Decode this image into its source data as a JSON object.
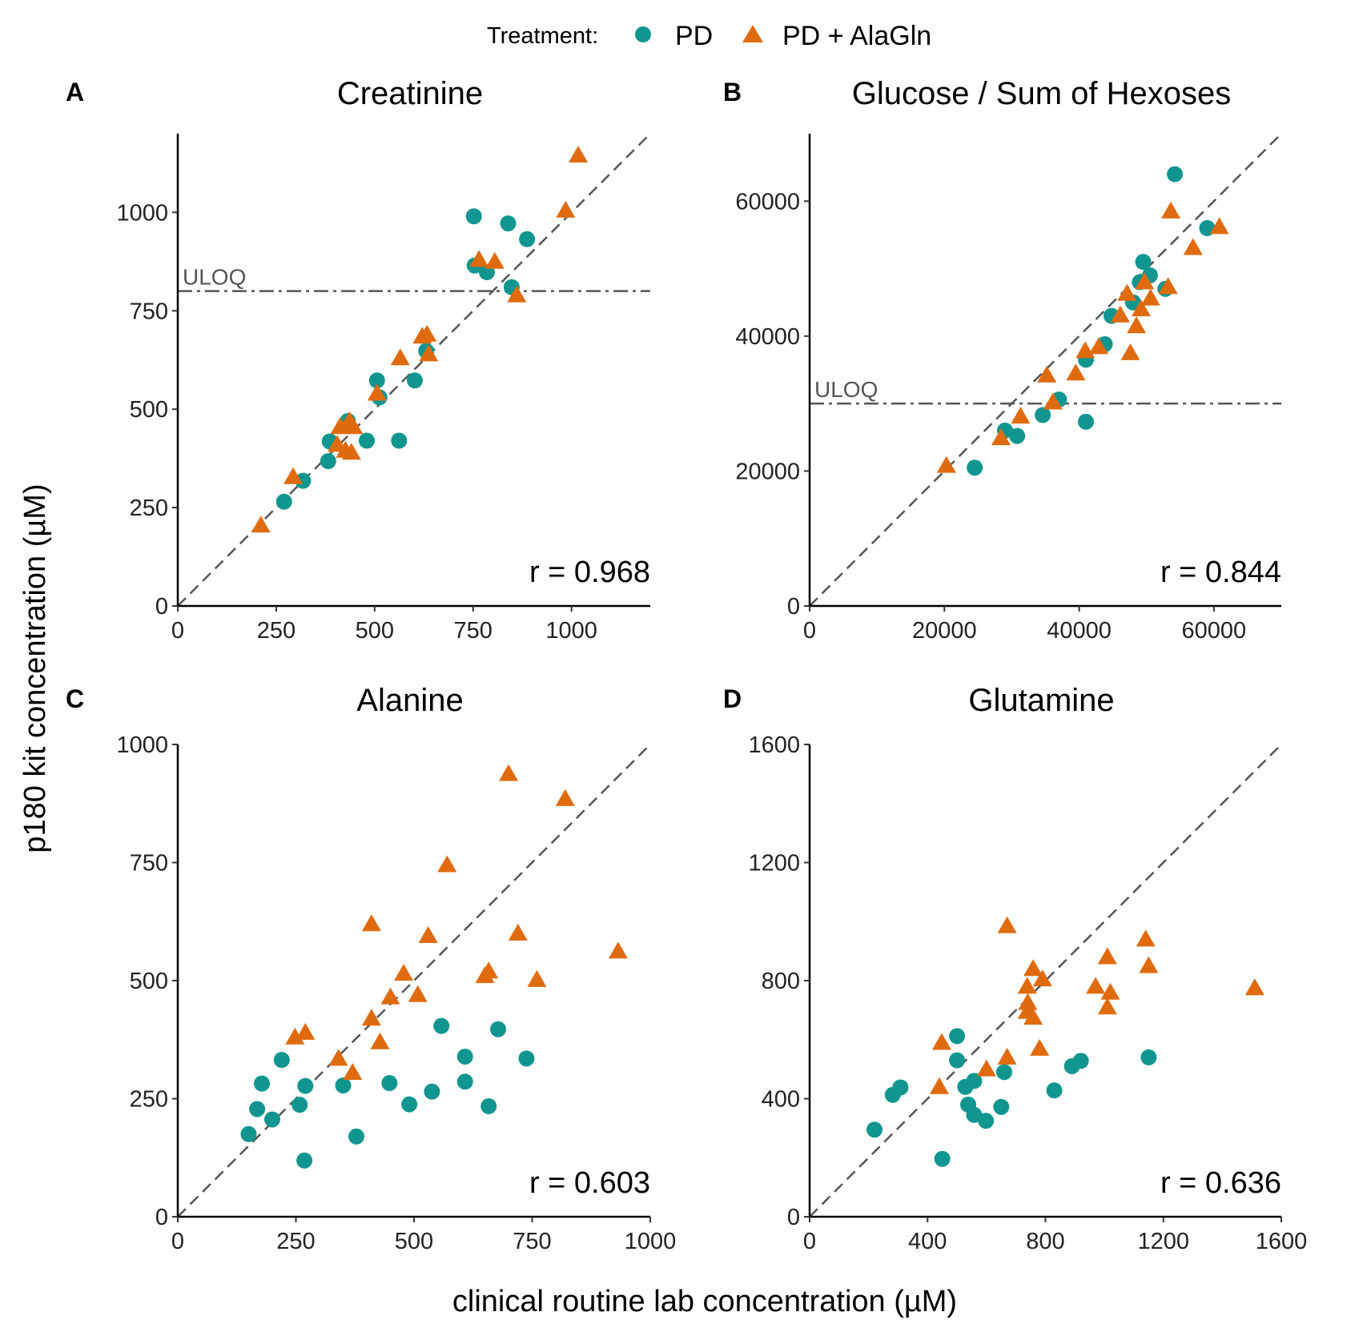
{
  "legend": {
    "title": "Treatment:",
    "items": [
      {
        "label": "PD",
        "shape": "circle",
        "color": "#11968f"
      },
      {
        "label": "PD + AlaGln",
        "shape": "triangle",
        "color": "#e06b0f"
      }
    ]
  },
  "xlabel": "clinical routine lab concentration (µM)",
  "ylabel": "p180 kit concentration (µM)",
  "chart_data": [
    {
      "type": "scatter",
      "panel": "A",
      "title": "Creatinine",
      "xlim": [
        0,
        1200
      ],
      "ylim": [
        0,
        1200
      ],
      "xticks": [
        0,
        250,
        500,
        750,
        1000
      ],
      "yticks": [
        0,
        250,
        500,
        750,
        1000
      ],
      "uloq": 800,
      "uloq_label": "ULOQ",
      "r_label": "r = 0.968",
      "diagonal": true,
      "series": [
        {
          "name": "PD",
          "points": [
            [
              270,
              265
            ],
            [
              318,
              318
            ],
            [
              382,
              368
            ],
            [
              386,
              418
            ],
            [
              432,
              470
            ],
            [
              480,
              420
            ],
            [
              506,
              573
            ],
            [
              512,
              530
            ],
            [
              562,
              420
            ],
            [
              602,
              573
            ],
            [
              631,
              648
            ],
            [
              752,
              990
            ],
            [
              754,
              865
            ],
            [
              785,
              848
            ],
            [
              839,
              972
            ],
            [
              848,
              810
            ],
            [
              887,
              932
            ]
          ]
        },
        {
          "name": "PD + AlaGln",
          "points": [
            [
              211,
              205
            ],
            [
              293,
              328
            ],
            [
              405,
              410
            ],
            [
              412,
              455
            ],
            [
              426,
              395
            ],
            [
              436,
              470
            ],
            [
              441,
              390
            ],
            [
              446,
              455
            ],
            [
              506,
              540
            ],
            [
              565,
              630
            ],
            [
              621,
              685
            ],
            [
              633,
              690
            ],
            [
              637,
              640
            ],
            [
              765,
              880
            ],
            [
              805,
              875
            ],
            [
              861,
              790
            ],
            [
              985,
              1005
            ],
            [
              1017,
              1145
            ]
          ]
        }
      ]
    },
    {
      "type": "scatter",
      "panel": "B",
      "title": "Glucose / Sum of Hexoses",
      "xlim": [
        0,
        70000
      ],
      "ylim": [
        0,
        70000
      ],
      "xticks": [
        0,
        20000,
        40000,
        60000
      ],
      "yticks": [
        0,
        20000,
        40000,
        60000
      ],
      "uloq": 30000,
      "uloq_label": "ULOQ",
      "r_label": "r = 0.844",
      "diagonal": true,
      "series": [
        {
          "name": "PD",
          "points": [
            [
              24500,
              20500
            ],
            [
              29000,
              26000
            ],
            [
              30800,
              25200
            ],
            [
              34600,
              28300
            ],
            [
              37000,
              30600
            ],
            [
              41000,
              36500
            ],
            [
              41000,
              27300
            ],
            [
              43800,
              38800
            ],
            [
              44800,
              43000
            ],
            [
              48000,
              45000
            ],
            [
              49000,
              48000
            ],
            [
              49500,
              51000
            ],
            [
              50500,
              49000
            ],
            [
              52800,
              47000
            ],
            [
              54200,
              64000
            ],
            [
              59000,
              56000
            ]
          ]
        },
        {
          "name": "PD + AlaGln",
          "points": [
            [
              20300,
              20800
            ],
            [
              28400,
              24900
            ],
            [
              31300,
              28100
            ],
            [
              35200,
              34200
            ],
            [
              36100,
              30200
            ],
            [
              39500,
              34500
            ],
            [
              40900,
              37800
            ],
            [
              42900,
              38400
            ],
            [
              46100,
              43100
            ],
            [
              47100,
              46300
            ],
            [
              47600,
              37500
            ],
            [
              48500,
              41500
            ],
            [
              49200,
              44000
            ],
            [
              49700,
              48000
            ],
            [
              50600,
              45600
            ],
            [
              53200,
              47300
            ],
            [
              53600,
              58500
            ],
            [
              56900,
              53100
            ],
            [
              60800,
              56200
            ]
          ]
        }
      ]
    },
    {
      "type": "scatter",
      "panel": "C",
      "title": "Alanine",
      "xlim": [
        0,
        1000
      ],
      "ylim": [
        0,
        1000
      ],
      "xticks": [
        0,
        250,
        500,
        750,
        1000
      ],
      "yticks": [
        0,
        250,
        500,
        750,
        1000
      ],
      "r_label": "r = 0.603",
      "diagonal": true,
      "series": [
        {
          "name": "PD",
          "points": [
            [
              150,
              175
            ],
            [
              168,
              228
            ],
            [
              178,
              282
            ],
            [
              200,
              206
            ],
            [
              220,
              332
            ],
            [
              258,
              237
            ],
            [
              268,
              119
            ],
            [
              270,
              277
            ],
            [
              350,
              278
            ],
            [
              378,
              170
            ],
            [
              448,
              283
            ],
            [
              490,
              238
            ],
            [
              538,
              265
            ],
            [
              558,
              404
            ],
            [
              608,
              339
            ],
            [
              608,
              286
            ],
            [
              658,
              234
            ],
            [
              678,
              397
            ],
            [
              738,
              335
            ]
          ]
        },
        {
          "name": "PD + AlaGln",
          "points": [
            [
              248,
              380
            ],
            [
              270,
              390
            ],
            [
              340,
              335
            ],
            [
              370,
              305
            ],
            [
              410,
              420
            ],
            [
              410,
              620
            ],
            [
              428,
              370
            ],
            [
              450,
              465
            ],
            [
              478,
              515
            ],
            [
              508,
              470
            ],
            [
              530,
              595
            ],
            [
              570,
              745
            ],
            [
              650,
              510
            ],
            [
              658,
              520
            ],
            [
              700,
              938
            ],
            [
              720,
              600
            ],
            [
              760,
              502
            ],
            [
              820,
              885
            ],
            [
              932,
              562
            ]
          ]
        }
      ]
    },
    {
      "type": "scatter",
      "panel": "D",
      "title": "Glutamine",
      "xlim": [
        0,
        1600
      ],
      "ylim": [
        0,
        1600
      ],
      "xticks": [
        0,
        400,
        800,
        1200,
        1600
      ],
      "yticks": [
        0,
        400,
        800,
        1200,
        1600
      ],
      "r_label": "r = 0.636",
      "diagonal": true,
      "series": [
        {
          "name": "PD",
          "points": [
            [
              220,
              295
            ],
            [
              282,
              413
            ],
            [
              308,
              438
            ],
            [
              450,
              196
            ],
            [
              500,
              612
            ],
            [
              500,
              530
            ],
            [
              528,
              440
            ],
            [
              538,
              380
            ],
            [
              558,
              345
            ],
            [
              558,
              460
            ],
            [
              598,
              325
            ],
            [
              650,
              372
            ],
            [
              660,
              490
            ],
            [
              830,
              428
            ],
            [
              890,
              510
            ],
            [
              920,
              528
            ],
            [
              1150,
              540
            ]
          ]
        },
        {
          "name": "PD + AlaGln",
          "points": [
            [
              440,
              440
            ],
            [
              448,
              590
            ],
            [
              600,
              500
            ],
            [
              670,
              985
            ],
            [
              670,
              540
            ],
            [
              738,
              695
            ],
            [
              738,
              780
            ],
            [
              740,
              725
            ],
            [
              758,
              675
            ],
            [
              758,
              840
            ],
            [
              780,
              570
            ],
            [
              790,
              805
            ],
            [
              970,
              780
            ],
            [
              1010,
              710
            ],
            [
              1010,
              880
            ],
            [
              1020,
              760
            ],
            [
              1140,
              940
            ],
            [
              1150,
              850
            ],
            [
              1510,
              775
            ]
          ]
        }
      ]
    }
  ]
}
